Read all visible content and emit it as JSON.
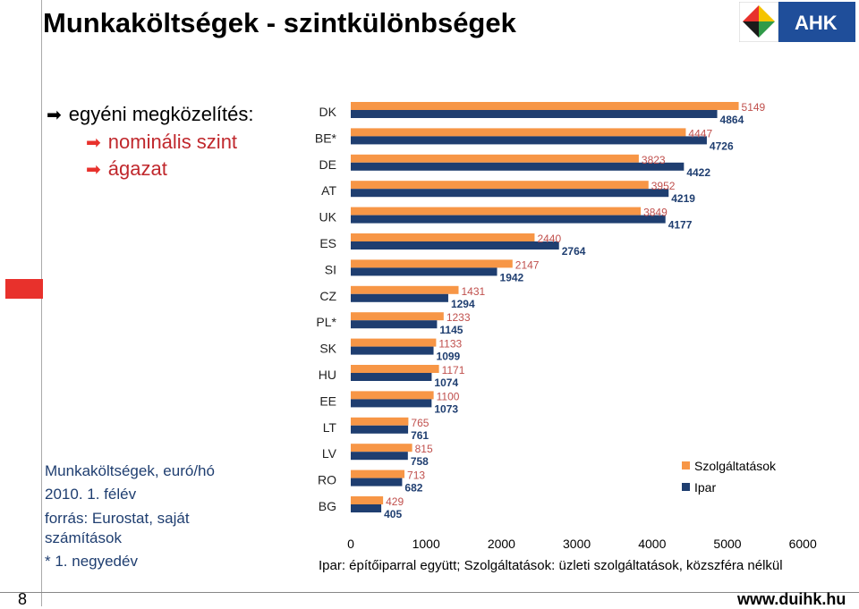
{
  "slide": {
    "title": "Munkaköltségek - szintkülönbségek",
    "logo_text": "AHK",
    "page_number": "8",
    "url": "www.duihk.hu"
  },
  "bullets": {
    "main": "egyéni megközelítés:",
    "sub1": "nominális szint",
    "sub2": "ágazat"
  },
  "notes": {
    "line1": "Munkaköltségek, euró/hó",
    "line2": "2010. 1. félév",
    "line3": "forrás: Eurostat, saját",
    "line4": "számítások",
    "line5": "* 1. negyedév"
  },
  "footer": "Ipar: építőiparral együtt; Szolgáltatások: üzleti szolgáltatások, közszféra nélkül",
  "colors": {
    "services": "#f79646",
    "industry": "#1f3e70",
    "accent": "#e8312c"
  },
  "chart_data": {
    "type": "bar",
    "orientation": "horizontal",
    "categories": [
      "DK",
      "BE*",
      "DE",
      "AT",
      "UK",
      "ES",
      "SI",
      "CZ",
      "PL*",
      "SK",
      "HU",
      "EE",
      "LT",
      "LV",
      "RO",
      "BG"
    ],
    "series": [
      {
        "name": "Szolgáltatások",
        "values": [
          5149,
          4447,
          3823,
          3952,
          3849,
          2440,
          2147,
          1431,
          1233,
          1133,
          1171,
          1100,
          765,
          815,
          713,
          429
        ]
      },
      {
        "name": "Ipar",
        "values": [
          4864,
          4726,
          4422,
          4219,
          4177,
          2764,
          1942,
          1294,
          1145,
          1099,
          1074,
          1073,
          761,
          758,
          682,
          405
        ]
      }
    ],
    "xlim": [
      0,
      6000
    ],
    "xticks": [
      "0",
      "1000",
      "2000",
      "3000",
      "4000",
      "5000",
      "6000"
    ],
    "legend_position": "right",
    "grid": false
  }
}
